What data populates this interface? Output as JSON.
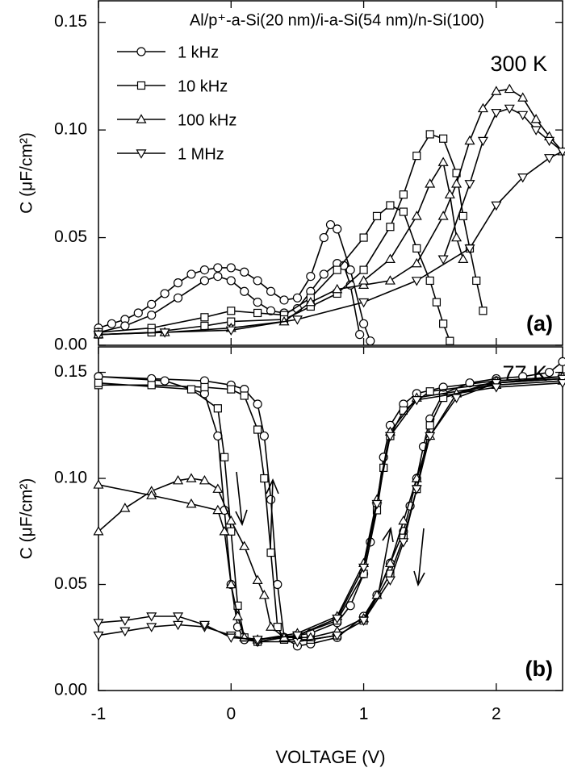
{
  "chart_data": [
    {
      "type": "line",
      "title": "Al/p⁺-a-Si(20 nm)/i-a-Si(54 nm)/n-Si(100)",
      "annotations": [
        "300 K",
        "(a)"
      ],
      "ylabel": "C (μF/cm²)",
      "xlim": [
        -1,
        2.5
      ],
      "ylim": [
        0,
        0.16
      ],
      "yticks": [
        {
          "value": 0,
          "label": "0.00"
        },
        0.05,
        {
          "value": 0.1,
          "label": "0.10"
        },
        0.15
      ],
      "legend": "upper left",
      "series": [
        {
          "name": "1 kHz",
          "marker": "circle",
          "color": "#000000",
          "x": [
            -1,
            -0.9,
            -0.8,
            -0.7,
            -0.6,
            -0.5,
            -0.4,
            -0.3,
            -0.2,
            -0.1,
            0,
            0.1,
            0.2,
            0.3,
            0.4,
            0.5,
            0.6,
            0.7,
            0.75,
            0.8,
            0.9,
            1.0,
            1.05,
            null,
            -1,
            -0.8,
            -0.6,
            -0.4,
            -0.2,
            -0.1,
            0,
            0.1,
            0.2,
            0.3,
            0.4,
            0.5,
            0.6,
            0.7,
            0.8,
            0.85,
            0.9,
            0.97
          ],
          "values": [
            0.008,
            0.01,
            0.012,
            0.015,
            0.019,
            0.024,
            0.029,
            0.033,
            0.035,
            0.036,
            0.036,
            0.034,
            0.03,
            0.025,
            0.021,
            0.022,
            0.032,
            0.05,
            0.056,
            0.054,
            0.035,
            0.01,
            0.002,
            null,
            0.006,
            0.009,
            0.014,
            0.022,
            0.03,
            0.032,
            0.03,
            0.025,
            0.02,
            0.016,
            0.015,
            0.017,
            0.025,
            0.033,
            0.038,
            0.037,
            0.028,
            0.005
          ]
        },
        {
          "name": "10 kHz",
          "marker": "square",
          "color": "#000000",
          "x": [
            -1,
            -0.6,
            -0.2,
            0,
            0.2,
            0.4,
            0.6,
            0.8,
            1.0,
            1.1,
            1.2,
            1.3,
            1.4,
            1.5,
            1.55,
            1.6,
            1.65,
            null,
            -1,
            -0.6,
            -0.2,
            0,
            0.4,
            0.6,
            0.8,
            1.0,
            1.2,
            1.3,
            1.4,
            1.5,
            1.6,
            1.7,
            1.75,
            1.8,
            1.85,
            1.9
          ],
          "values": [
            0.006,
            0.008,
            0.013,
            0.016,
            0.015,
            0.014,
            0.022,
            0.035,
            0.05,
            0.06,
            0.065,
            0.062,
            0.045,
            0.03,
            0.02,
            0.01,
            0.002,
            null,
            0.005,
            0.006,
            0.009,
            0.011,
            0.012,
            0.018,
            0.024,
            0.035,
            0.055,
            0.07,
            0.088,
            0.098,
            0.096,
            0.08,
            0.06,
            0.045,
            0.03,
            0.016
          ]
        },
        {
          "name": "100 kHz",
          "marker": "triangle-up",
          "color": "#000000",
          "x": [
            -1,
            -0.5,
            0,
            0.4,
            0.6,
            0.8,
            1.0,
            1.2,
            1.4,
            1.6,
            1.7,
            1.8,
            1.9,
            2.0,
            2.1,
            2.2,
            2.3,
            2.4,
            2.5,
            null,
            1.0,
            1.2,
            1.4,
            1.5,
            1.6,
            1.65,
            1.7,
            1.75
          ],
          "values": [
            0.005,
            0.006,
            0.008,
            0.011,
            0.02,
            0.026,
            0.028,
            0.03,
            0.038,
            0.06,
            0.075,
            0.095,
            0.11,
            0.118,
            0.119,
            0.115,
            0.105,
            0.097,
            0.09,
            null,
            0.03,
            0.04,
            0.06,
            0.075,
            0.085,
            0.07,
            0.05,
            0.04
          ]
        },
        {
          "name": "1 MHz",
          "marker": "triangle-down",
          "color": "#000000",
          "x": [
            -1,
            -0.5,
            0,
            0.5,
            1.0,
            1.4,
            1.8,
            2.0,
            2.2,
            2.4,
            2.5,
            null,
            1.6,
            1.8,
            1.9,
            2.0,
            2.1,
            2.2,
            2.3,
            2.4,
            2.5
          ],
          "values": [
            0.005,
            0.006,
            0.007,
            0.012,
            0.02,
            0.03,
            0.045,
            0.065,
            0.078,
            0.087,
            0.09,
            null,
            0.04,
            0.075,
            0.095,
            0.108,
            0.11,
            0.107,
            0.1,
            0.095,
            0.09
          ]
        }
      ]
    },
    {
      "type": "line",
      "annotations": [
        "77 K",
        "(b)"
      ],
      "ylabel": "C (μF/cm²)",
      "xlabel": "VOLTAGE (V)",
      "xlim": [
        -1,
        2.5
      ],
      "xticks": [
        -1,
        0,
        1,
        2
      ],
      "ylim": [
        0,
        0.162
      ],
      "yticks": [
        {
          "value": 0,
          "label": "0.00"
        },
        0.05,
        {
          "value": 0.1,
          "label": "0.10"
        },
        0.15
      ],
      "series": [
        {
          "marker": "circle",
          "color": "#000000",
          "x": [
            -1,
            -0.6,
            -0.2,
            0,
            0.1,
            0.2,
            0.25,
            0.3,
            0.35,
            0.4,
            0.5,
            0.6,
            0.8,
            1.0,
            1.1,
            1.2,
            1.3,
            1.35,
            1.4,
            1.45,
            1.5,
            1.6,
            1.8,
            2.0,
            2.2,
            2.4,
            2.5,
            null,
            2.5,
            2.0,
            1.6,
            1.4,
            1.3,
            1.2,
            1.15,
            1.1,
            1.05,
            1.0,
            0.9,
            0.8,
            0.6,
            0.4,
            0.2,
            0.1,
            0.05,
            0,
            -0.05,
            -0.1,
            -0.2,
            -0.5,
            -1
          ],
          "values": [
            0.148,
            0.147,
            0.146,
            0.144,
            0.142,
            0.135,
            0.12,
            0.09,
            0.05,
            0.025,
            0.021,
            0.022,
            0.025,
            0.035,
            0.045,
            0.06,
            0.075,
            0.087,
            0.1,
            0.115,
            0.128,
            0.14,
            0.145,
            0.147,
            0.148,
            0.15,
            0.155,
            null,
            0.148,
            0.146,
            0.143,
            0.14,
            0.135,
            0.125,
            0.11,
            0.088,
            0.07,
            0.055,
            0.04,
            0.032,
            0.027,
            0.025,
            0.023,
            0.024,
            0.03,
            0.05,
            0.085,
            0.12,
            0.14,
            0.146,
            0.148
          ]
        },
        {
          "marker": "square",
          "color": "#000000",
          "x": [
            -1,
            -0.6,
            -0.2,
            0,
            0.1,
            0.2,
            0.25,
            0.3,
            0.35,
            0.4,
            0.6,
            0.8,
            1.0,
            1.2,
            1.3,
            1.4,
            1.5,
            1.6,
            2.0,
            2.5,
            null,
            2.5,
            2.0,
            1.5,
            1.3,
            1.2,
            1.15,
            1.1,
            1.0,
            0.8,
            0.5,
            0.2,
            0.1,
            0.05,
            0,
            -0.05,
            -0.1,
            -0.3,
            -1
          ],
          "values": [
            0.144,
            0.144,
            0.143,
            0.142,
            0.139,
            0.123,
            0.1,
            0.065,
            0.03,
            0.024,
            0.024,
            0.026,
            0.033,
            0.055,
            0.072,
            0.095,
            0.125,
            0.138,
            0.145,
            0.148,
            null,
            0.147,
            0.145,
            0.141,
            0.132,
            0.12,
            0.105,
            0.085,
            0.055,
            0.033,
            0.026,
            0.023,
            0.025,
            0.04,
            0.075,
            0.11,
            0.133,
            0.142,
            0.145
          ]
        },
        {
          "marker": "triangle-up",
          "color": "#000000",
          "x": [
            -1,
            -0.8,
            -0.6,
            -0.4,
            -0.3,
            -0.2,
            -0.1,
            0,
            0.1,
            0.2,
            0.25,
            0.3,
            0.4,
            0.6,
            0.8,
            1.0,
            1.1,
            1.2,
            1.3,
            1.4,
            1.5,
            1.7,
            2.0,
            2.5,
            null,
            2.5,
            2.0,
            1.4,
            1.2,
            1.1,
            1.0,
            0.8,
            0.5,
            0.2,
            0.1,
            0.05,
            0,
            -0.05,
            -0.1,
            -0.3,
            -0.6,
            -1
          ],
          "values": [
            0.075,
            0.086,
            0.094,
            0.099,
            0.1,
            0.099,
            0.095,
            0.08,
            0.068,
            0.052,
            0.045,
            0.03,
            0.025,
            0.025,
            0.028,
            0.034,
            0.045,
            0.06,
            0.08,
            0.1,
            0.12,
            0.14,
            0.146,
            0.148,
            null,
            0.146,
            0.144,
            0.138,
            0.122,
            0.09,
            0.06,
            0.035,
            0.027,
            0.024,
            0.025,
            0.035,
            0.05,
            0.075,
            0.085,
            0.088,
            0.092,
            0.097
          ]
        },
        {
          "marker": "triangle-down",
          "color": "#000000",
          "x": [
            -1,
            -0.8,
            -0.6,
            -0.4,
            -0.2,
            0,
            0.2,
            0.5,
            0.8,
            1.0,
            1.2,
            1.3,
            1.4,
            1.5,
            1.7,
            2.0,
            2.5,
            null,
            2.5,
            2.0,
            1.4,
            1.2,
            1.1,
            1.0,
            0.8,
            0.5,
            0.2,
            0,
            -0.2,
            -0.4,
            -0.6,
            -0.8,
            -1
          ],
          "values": [
            0.026,
            0.028,
            0.03,
            0.031,
            0.03,
            0.026,
            0.023,
            0.023,
            0.026,
            0.033,
            0.052,
            0.07,
            0.095,
            0.12,
            0.138,
            0.145,
            0.147,
            null,
            0.145,
            0.143,
            0.137,
            0.12,
            0.088,
            0.058,
            0.034,
            0.026,
            0.024,
            0.025,
            0.031,
            0.035,
            0.035,
            0.033,
            0.032
          ]
        }
      ]
    }
  ]
}
